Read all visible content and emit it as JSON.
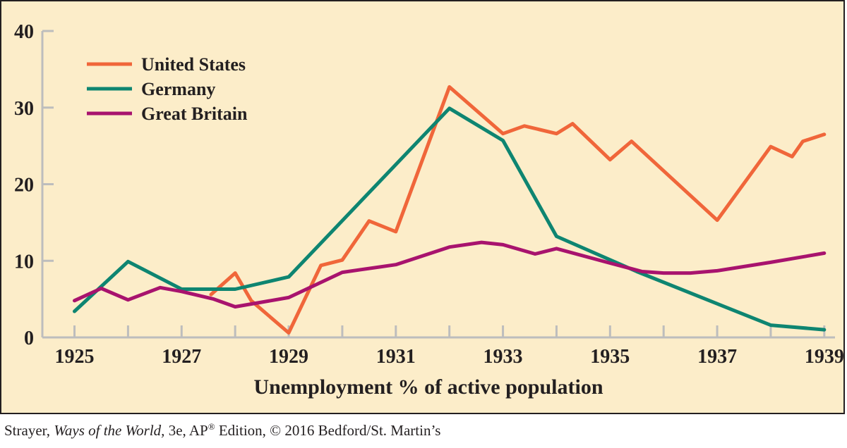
{
  "chart_data": {
    "type": "line",
    "title": "",
    "xlabel": "Unemployment % of active population",
    "ylabel": "",
    "xlim": [
      1924.4,
      1939.2
    ],
    "ylim": [
      0,
      40
    ],
    "x_ticks": [
      1925,
      1926,
      1927,
      1928,
      1929,
      1930,
      1931,
      1932,
      1933,
      1934,
      1935,
      1936,
      1937,
      1938,
      1939
    ],
    "x_tick_labels": [
      "1925",
      "1927",
      "1929",
      "1931",
      "1933",
      "1935",
      "1937",
      "1939"
    ],
    "x_tick_label_values": [
      1925,
      1927,
      1929,
      1931,
      1933,
      1935,
      1937,
      1939
    ],
    "y_ticks": [
      0,
      10,
      20,
      30,
      40
    ],
    "y_tick_labels": [
      "0",
      "10",
      "20",
      "30",
      "40"
    ],
    "grid": false,
    "legend_position": "top-left",
    "background_color": "#fcedc9",
    "series": [
      {
        "name": "United States",
        "color": "#f0663a",
        "points": [
          [
            1927.55,
            5.6
          ],
          [
            1928.0,
            8.4
          ],
          [
            1928.3,
            4.8
          ],
          [
            1929.0,
            0.6
          ],
          [
            1929.6,
            9.4
          ],
          [
            1930.0,
            10.1
          ],
          [
            1930.5,
            15.2
          ],
          [
            1931.0,
            13.8
          ],
          [
            1932.0,
            32.7
          ],
          [
            1933.0,
            26.6
          ],
          [
            1933.4,
            27.6
          ],
          [
            1934.0,
            26.6
          ],
          [
            1934.3,
            27.9
          ],
          [
            1935.0,
            23.2
          ],
          [
            1935.4,
            25.6
          ],
          [
            1937.0,
            15.3
          ],
          [
            1938.0,
            24.9
          ],
          [
            1938.4,
            23.6
          ],
          [
            1938.6,
            25.6
          ],
          [
            1939.0,
            26.5
          ]
        ]
      },
      {
        "name": "Germany",
        "color": "#0e8571",
        "points": [
          [
            1925.0,
            3.4
          ],
          [
            1926.0,
            9.9
          ],
          [
            1927.0,
            6.3
          ],
          [
            1928.0,
            6.3
          ],
          [
            1929.0,
            7.9
          ],
          [
            1932.0,
            29.9
          ],
          [
            1933.0,
            25.7
          ],
          [
            1934.0,
            13.2
          ],
          [
            1935.5,
            8.6
          ],
          [
            1938.0,
            1.6
          ],
          [
            1939.0,
            1.0
          ]
        ]
      },
      {
        "name": "Great Britain",
        "color": "#a8136e",
        "points": [
          [
            1925.0,
            4.8
          ],
          [
            1925.5,
            6.4
          ],
          [
            1926.0,
            4.9
          ],
          [
            1926.6,
            6.5
          ],
          [
            1927.0,
            6.0
          ],
          [
            1927.6,
            5.0
          ],
          [
            1928.0,
            4.0
          ],
          [
            1929.0,
            5.2
          ],
          [
            1930.0,
            8.5
          ],
          [
            1931.0,
            9.5
          ],
          [
            1932.0,
            11.8
          ],
          [
            1932.6,
            12.4
          ],
          [
            1933.0,
            12.1
          ],
          [
            1933.6,
            10.9
          ],
          [
            1934.0,
            11.6
          ],
          [
            1935.0,
            9.7
          ],
          [
            1935.6,
            8.6
          ],
          [
            1936.0,
            8.4
          ],
          [
            1936.5,
            8.4
          ],
          [
            1937.0,
            8.7
          ],
          [
            1938.0,
            9.8
          ],
          [
            1939.0,
            11.0
          ]
        ]
      }
    ]
  },
  "credit": {
    "prefix": "Strayer, ",
    "book_title": "Ways of the World,",
    "edition": " 3e, AP",
    "registered": "®",
    "suffix": " Edition, © 2016 Bedford/St. Martin’s"
  }
}
